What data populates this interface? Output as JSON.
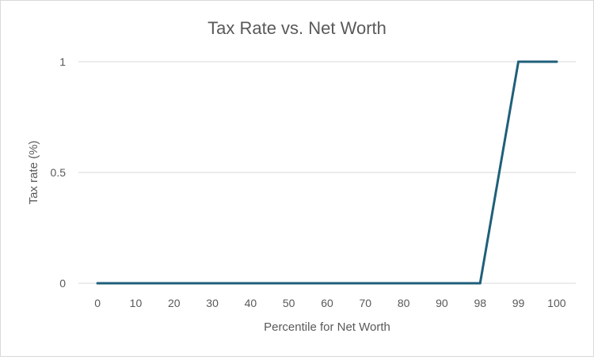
{
  "chart_data": {
    "type": "line",
    "title": "Tax Rate vs. Net Worth",
    "xlabel": "Percentile for Net Worth",
    "ylabel": "Tax rate (%)",
    "categories": [
      "0",
      "10",
      "20",
      "30",
      "40",
      "50",
      "60",
      "70",
      "80",
      "90",
      "98",
      "99",
      "100"
    ],
    "values": [
      0,
      0,
      0,
      0,
      0,
      0,
      0,
      0,
      0,
      0,
      0,
      1,
      1
    ],
    "y_ticks": [
      "0",
      "0.5",
      "1"
    ],
    "ylim": [
      0,
      1
    ],
    "grid": true,
    "legend": "none",
    "line_color": "#1f5f7a"
  }
}
